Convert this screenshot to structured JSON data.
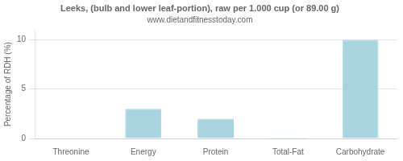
{
  "chart_data": {
    "type": "bar",
    "title": "Leeks, (bulb and lower leaf-portion), raw per 1.000 cup (or 89.00 g)",
    "subtitle": "www.dietandfitnesstoday.com",
    "categories": [
      "Threonine",
      "Energy",
      "Protein",
      "Total-Fat",
      "Carbohydrate"
    ],
    "values": [
      0,
      3.0,
      2.0,
      0.1,
      10.0
    ],
    "color": "#a8d4e0",
    "ylabel": "Percentage of RDH (%)",
    "ylim": [
      0,
      11
    ],
    "yticks": [
      0,
      5,
      10
    ],
    "grid": true
  }
}
